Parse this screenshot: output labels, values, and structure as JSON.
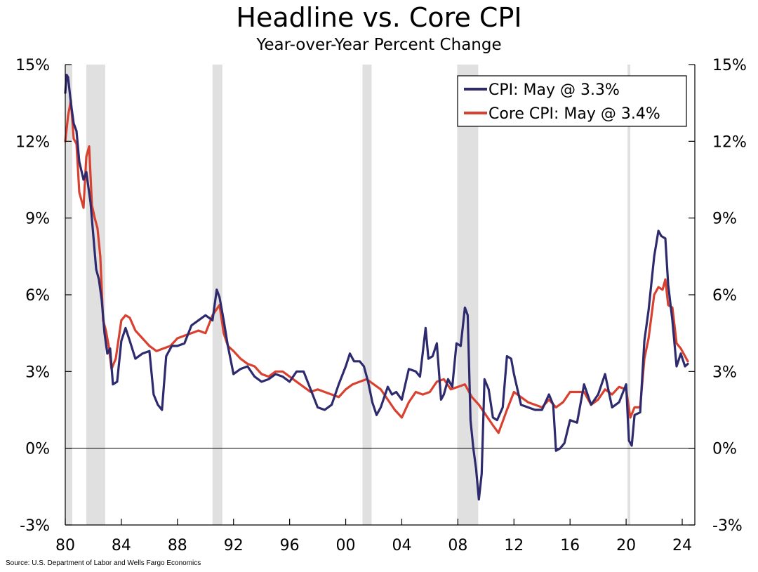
{
  "chart_data": {
    "type": "line",
    "title": "Headline vs. Core CPI",
    "subtitle": "Year-over-Year Percent Change",
    "source": "Source: U.S. Department of Labor and Wells Fargo Economics",
    "x_tick_labels": [
      "80",
      "84",
      "88",
      "92",
      "96",
      "00",
      "04",
      "08",
      "12",
      "16",
      "20",
      "24"
    ],
    "x_tick_years": [
      1980,
      1984,
      1988,
      1992,
      1996,
      2000,
      2004,
      2008,
      2012,
      2016,
      2020,
      2024
    ],
    "xlim": [
      1980,
      2024.9
    ],
    "y_tick_labels": [
      "15%",
      "12%",
      "9%",
      "6%",
      "3%",
      "0%",
      "-3%"
    ],
    "y_tick_values": [
      15,
      12,
      9,
      6,
      3,
      0,
      -3
    ],
    "ylim": [
      -3,
      15
    ],
    "grid": false,
    "legend_position": "top-right",
    "recessions": [
      [
        1980.0,
        1980.5
      ],
      [
        1981.5,
        1982.85
      ],
      [
        1990.5,
        1991.2
      ],
      [
        2001.2,
        2001.85
      ],
      [
        2007.95,
        2009.45
      ],
      [
        2020.1,
        2020.3
      ]
    ],
    "series": [
      {
        "name": "CPI: May @ 3.3%",
        "color": "#2E2A6E",
        "x": [
          1980.0,
          1980.1,
          1980.2,
          1980.4,
          1980.6,
          1980.8,
          1981.0,
          1981.3,
          1981.5,
          1981.8,
          1982.0,
          1982.2,
          1982.4,
          1982.6,
          1982.8,
          1983.0,
          1983.2,
          1983.4,
          1983.7,
          1984.0,
          1984.3,
          1984.6,
          1985.0,
          1985.5,
          1986.0,
          1986.3,
          1986.6,
          1986.9,
          1987.2,
          1987.6,
          1988.0,
          1988.5,
          1989.0,
          1989.5,
          1990.0,
          1990.5,
          1990.8,
          1991.0,
          1991.3,
          1991.6,
          1992.0,
          1992.5,
          1993.0,
          1993.5,
          1994.0,
          1994.5,
          1995.0,
          1995.5,
          1996.0,
          1996.5,
          1997.0,
          1997.5,
          1998.0,
          1998.5,
          1999.0,
          1999.5,
          2000.0,
          2000.3,
          2000.6,
          2001.0,
          2001.3,
          2001.6,
          2001.9,
          2002.2,
          2002.5,
          2003.0,
          2003.3,
          2003.6,
          2004.0,
          2004.5,
          2005.0,
          2005.3,
          2005.7,
          2005.9,
          2006.2,
          2006.5,
          2006.8,
          2007.0,
          2007.3,
          2007.6,
          2007.9,
          2008.2,
          2008.5,
          2008.7,
          2008.9,
          2009.1,
          2009.3,
          2009.5,
          2009.7,
          2009.9,
          2010.2,
          2010.5,
          2010.8,
          2011.2,
          2011.5,
          2011.8,
          2012.0,
          2012.5,
          2013.0,
          2013.5,
          2014.0,
          2014.5,
          2014.8,
          2015.0,
          2015.3,
          2015.6,
          2016.0,
          2016.5,
          2017.0,
          2017.5,
          2018.0,
          2018.5,
          2019.0,
          2019.5,
          2020.0,
          2020.2,
          2020.4,
          2020.6,
          2021.0,
          2021.3,
          2021.6,
          2022.0,
          2022.3,
          2022.5,
          2022.8,
          2023.0,
          2023.3,
          2023.6,
          2023.9,
          2024.2,
          2024.4
        ],
        "y": [
          13.9,
          14.6,
          14.5,
          13.5,
          12.7,
          12.4,
          11.2,
          10.5,
          10.8,
          9.6,
          8.3,
          7.0,
          6.6,
          5.8,
          4.5,
          3.7,
          3.9,
          2.5,
          2.6,
          4.2,
          4.7,
          4.2,
          3.5,
          3.7,
          3.8,
          2.1,
          1.7,
          1.5,
          3.6,
          4.0,
          4.0,
          4.1,
          4.8,
          5.0,
          5.2,
          5.0,
          6.2,
          5.9,
          5.0,
          4.0,
          2.9,
          3.1,
          3.2,
          2.8,
          2.6,
          2.7,
          2.9,
          2.8,
          2.6,
          3.0,
          3.0,
          2.3,
          1.6,
          1.5,
          1.7,
          2.5,
          3.2,
          3.7,
          3.4,
          3.4,
          3.2,
          2.6,
          1.8,
          1.3,
          1.6,
          2.4,
          2.1,
          2.2,
          1.9,
          3.1,
          3.0,
          2.8,
          4.7,
          3.5,
          3.6,
          4.1,
          1.9,
          2.1,
          2.7,
          2.4,
          4.1,
          4.0,
          5.5,
          5.2,
          1.1,
          0.0,
          -0.8,
          -2.0,
          -1.0,
          2.7,
          2.3,
          1.2,
          1.1,
          1.6,
          3.6,
          3.5,
          2.9,
          1.7,
          1.6,
          1.5,
          1.5,
          2.1,
          1.7,
          -0.1,
          0.0,
          0.2,
          1.1,
          1.0,
          2.5,
          1.7,
          2.1,
          2.9,
          1.6,
          1.8,
          2.5,
          0.3,
          0.1,
          1.3,
          1.4,
          4.2,
          5.4,
          7.5,
          8.5,
          8.3,
          8.2,
          6.4,
          5.0,
          3.2,
          3.7,
          3.2,
          3.3
        ],
        "end_label": "CPI: May @ 3.3%"
      },
      {
        "name": "Core CPI: May @ 3.4%",
        "color": "#D8412F",
        "x": [
          1980.0,
          1980.2,
          1980.4,
          1980.6,
          1980.8,
          1981.0,
          1981.3,
          1981.5,
          1981.7,
          1981.9,
          1982.1,
          1982.3,
          1982.5,
          1982.7,
          1982.9,
          1983.1,
          1983.3,
          1983.6,
          1984.0,
          1984.3,
          1984.6,
          1985.0,
          1985.5,
          1986.0,
          1986.5,
          1987.0,
          1987.5,
          1988.0,
          1988.5,
          1989.0,
          1989.5,
          1990.0,
          1990.5,
          1991.0,
          1991.3,
          1991.6,
          1992.0,
          1992.5,
          1993.0,
          1993.5,
          1994.0,
          1994.5,
          1995.0,
          1995.5,
          1996.0,
          1996.5,
          1997.0,
          1997.5,
          1998.0,
          1998.5,
          1999.0,
          1999.5,
          2000.0,
          2000.5,
          2001.0,
          2001.5,
          2002.0,
          2002.5,
          2003.0,
          2003.5,
          2004.0,
          2004.5,
          2005.0,
          2005.5,
          2006.0,
          2006.5,
          2007.0,
          2007.5,
          2008.0,
          2008.5,
          2009.0,
          2009.5,
          2010.0,
          2010.5,
          2010.9,
          2011.5,
          2012.0,
          2012.5,
          2013.0,
          2013.5,
          2014.0,
          2014.5,
          2015.0,
          2015.5,
          2016.0,
          2016.5,
          2017.0,
          2017.5,
          2018.0,
          2018.5,
          2019.0,
          2019.5,
          2020.0,
          2020.3,
          2020.6,
          2021.0,
          2021.3,
          2021.6,
          2022.0,
          2022.3,
          2022.6,
          2022.8,
          2023.0,
          2023.3,
          2023.6,
          2023.9,
          2024.2,
          2024.4
        ],
        "y": [
          12.0,
          13.0,
          13.6,
          12.1,
          11.9,
          10.0,
          9.4,
          11.4,
          11.8,
          9.5,
          9.0,
          8.6,
          7.5,
          5.0,
          4.6,
          4.0,
          3.1,
          3.5,
          5.0,
          5.2,
          5.1,
          4.6,
          4.3,
          4.0,
          3.8,
          3.9,
          4.0,
          4.3,
          4.4,
          4.5,
          4.6,
          4.5,
          5.2,
          5.6,
          4.5,
          4.0,
          3.8,
          3.5,
          3.3,
          3.2,
          2.9,
          2.8,
          3.0,
          3.0,
          2.8,
          2.6,
          2.4,
          2.2,
          2.3,
          2.2,
          2.1,
          2.0,
          2.3,
          2.5,
          2.6,
          2.7,
          2.5,
          2.3,
          1.9,
          1.5,
          1.2,
          1.8,
          2.2,
          2.1,
          2.2,
          2.6,
          2.7,
          2.3,
          2.4,
          2.5,
          2.0,
          1.7,
          1.3,
          0.9,
          0.6,
          1.5,
          2.2,
          2.0,
          1.8,
          1.7,
          1.6,
          1.9,
          1.6,
          1.8,
          2.2,
          2.2,
          2.2,
          1.7,
          1.9,
          2.3,
          2.1,
          2.4,
          2.3,
          1.2,
          1.6,
          1.6,
          3.5,
          4.3,
          6.0,
          6.3,
          6.2,
          6.6,
          5.6,
          5.5,
          4.1,
          3.9,
          3.6,
          3.4
        ],
        "end_label": "Core CPI: May @ 3.4%"
      }
    ]
  }
}
